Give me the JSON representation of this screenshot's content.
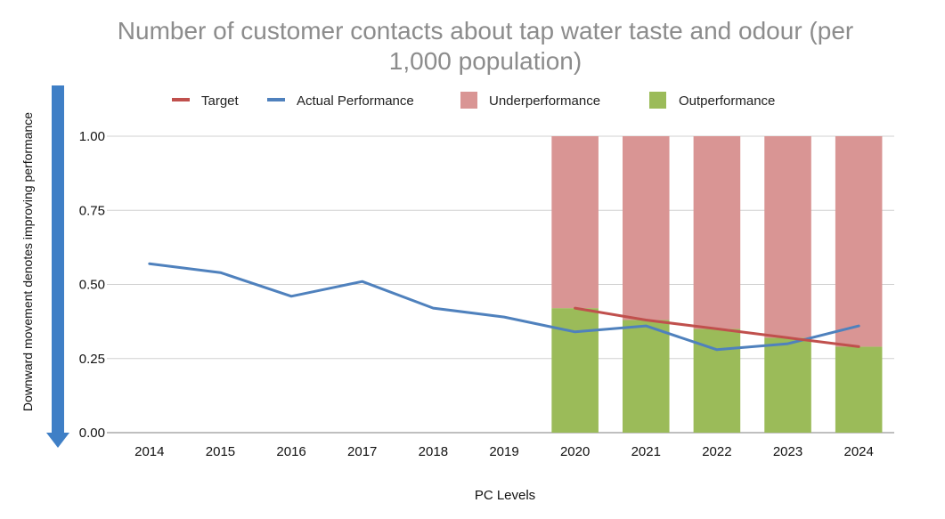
{
  "chart_data": {
    "type": "bar+line",
    "title": "Number of customer contacts about tap water taste and odour (per 1,000 population)",
    "title_lines": [
      "Number of customer contacts about tap water taste and odour (per",
      "1,000 population)"
    ],
    "xlabel": "PC Levels",
    "side_label": "Downward movement denotes improving performance",
    "categories": [
      "2014",
      "2015",
      "2016",
      "2017",
      "2018",
      "2019",
      "2020",
      "2021",
      "2022",
      "2023",
      "2024"
    ],
    "ylim": [
      0,
      1
    ],
    "y_ticks": [
      "0.00",
      "0.25",
      "0.50",
      "0.75",
      "1.00"
    ],
    "y_tick_values": [
      0,
      0.25,
      0.5,
      0.75,
      1.0
    ],
    "series": [
      {
        "name": "Target",
        "type": "line",
        "color": "#c0504d",
        "values": [
          null,
          null,
          null,
          null,
          null,
          null,
          0.42,
          0.38,
          0.35,
          0.32,
          0.29
        ]
      },
      {
        "name": "Actual Performance",
        "type": "line",
        "color": "#4f81bd",
        "values": [
          0.57,
          0.54,
          0.46,
          0.51,
          0.42,
          0.39,
          0.34,
          0.36,
          0.28,
          0.3,
          0.36
        ]
      },
      {
        "name": "Underperformance",
        "type": "stacked-bar",
        "color": "#d99594",
        "values": [
          null,
          null,
          null,
          null,
          null,
          null,
          0.58,
          0.62,
          0.65,
          0.68,
          0.71
        ]
      },
      {
        "name": "Outperformance",
        "type": "stacked-bar",
        "color": "#9bbb59",
        "values": [
          null,
          null,
          null,
          null,
          null,
          null,
          0.42,
          0.38,
          0.35,
          0.32,
          0.29
        ]
      }
    ],
    "legend": [
      "Target",
      "Actual Performance",
      "Underperformance",
      "Outperformance"
    ],
    "arrow_color": "#3f7fc6",
    "grid": true
  }
}
